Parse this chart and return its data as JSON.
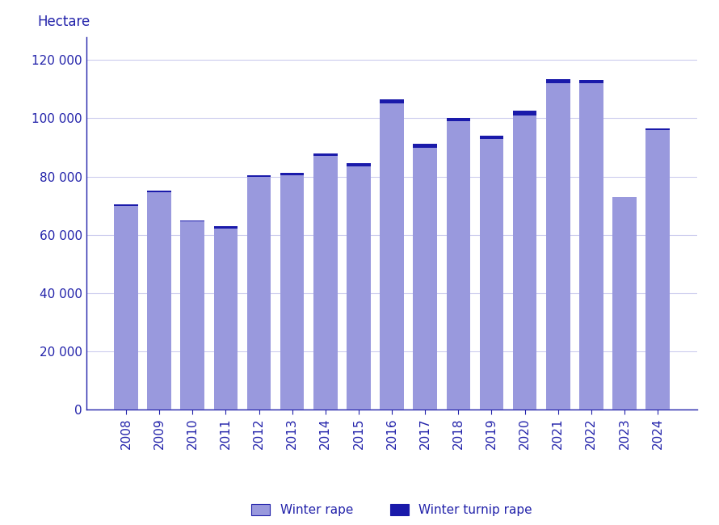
{
  "years": [
    2008,
    2009,
    2010,
    2011,
    2012,
    2013,
    2014,
    2015,
    2016,
    2017,
    2018,
    2019,
    2020,
    2021,
    2022,
    2023,
    2024
  ],
  "winter_rape": [
    70000,
    74500,
    64500,
    62000,
    80000,
    80500,
    87000,
    83500,
    105000,
    90000,
    99000,
    93000,
    101000,
    112000,
    112000,
    73000,
    96000
  ],
  "winter_turnip_rape": [
    500,
    700,
    500,
    1000,
    500,
    800,
    1000,
    1000,
    1500,
    1200,
    1000,
    1000,
    1500,
    1500,
    1200,
    0,
    500
  ],
  "winter_rape_color": "#9999dd",
  "winter_turnip_rape_color": "#1a1aaa",
  "ylabel": "Hectare",
  "ylim_min": 0,
  "ylim_max": 128000,
  "yticks": [
    0,
    20000,
    40000,
    60000,
    80000,
    100000,
    120000
  ],
  "ytick_labels": [
    "0",
    "20 000",
    "40 000",
    "60 000",
    "80 000",
    "100 000",
    "120 000"
  ],
  "legend_winter_rape": "Winter rape",
  "legend_winter_turnip_rape": "Winter turnip rape",
  "bg_color": "#ffffff",
  "grid_color": "#ccccee",
  "axis_color": "#2222aa",
  "text_color": "#2222aa"
}
